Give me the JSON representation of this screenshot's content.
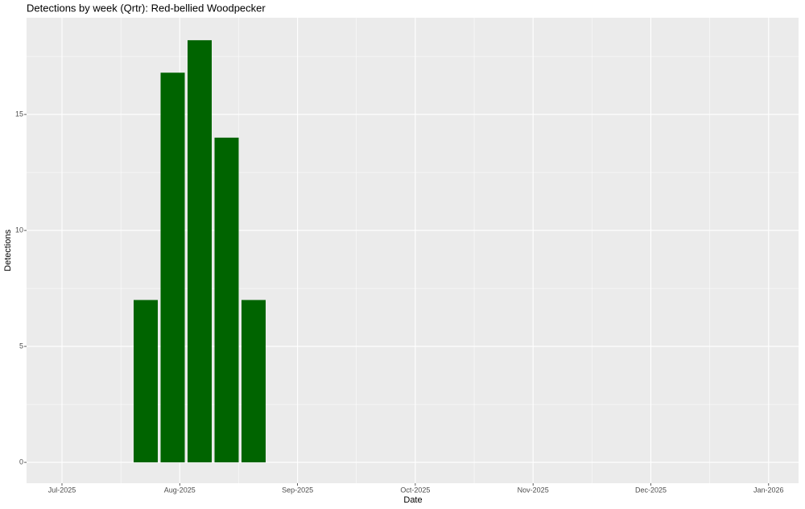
{
  "chart_data": {
    "type": "bar",
    "title": "Detections by week (Qrtr): Red-bellied Woodpecker",
    "x_label": "Date",
    "y_label": "Detections",
    "categories": [
      null,
      null,
      null,
      null,
      null
    ],
    "values": [
      7,
      16.8,
      18.2,
      14,
      7
    ],
    "color": "#006400",
    "xticks": [
      "Jul-2025",
      "Aug-2025",
      "Sep-2025",
      "Oct-2025",
      "Nov-2025",
      "Dec-2025",
      "Jan-2026"
    ],
    "ylim": [
      -0.9,
      19.17
    ],
    "yticks": [
      0,
      5,
      10,
      15
    ],
    "grid": true
  }
}
